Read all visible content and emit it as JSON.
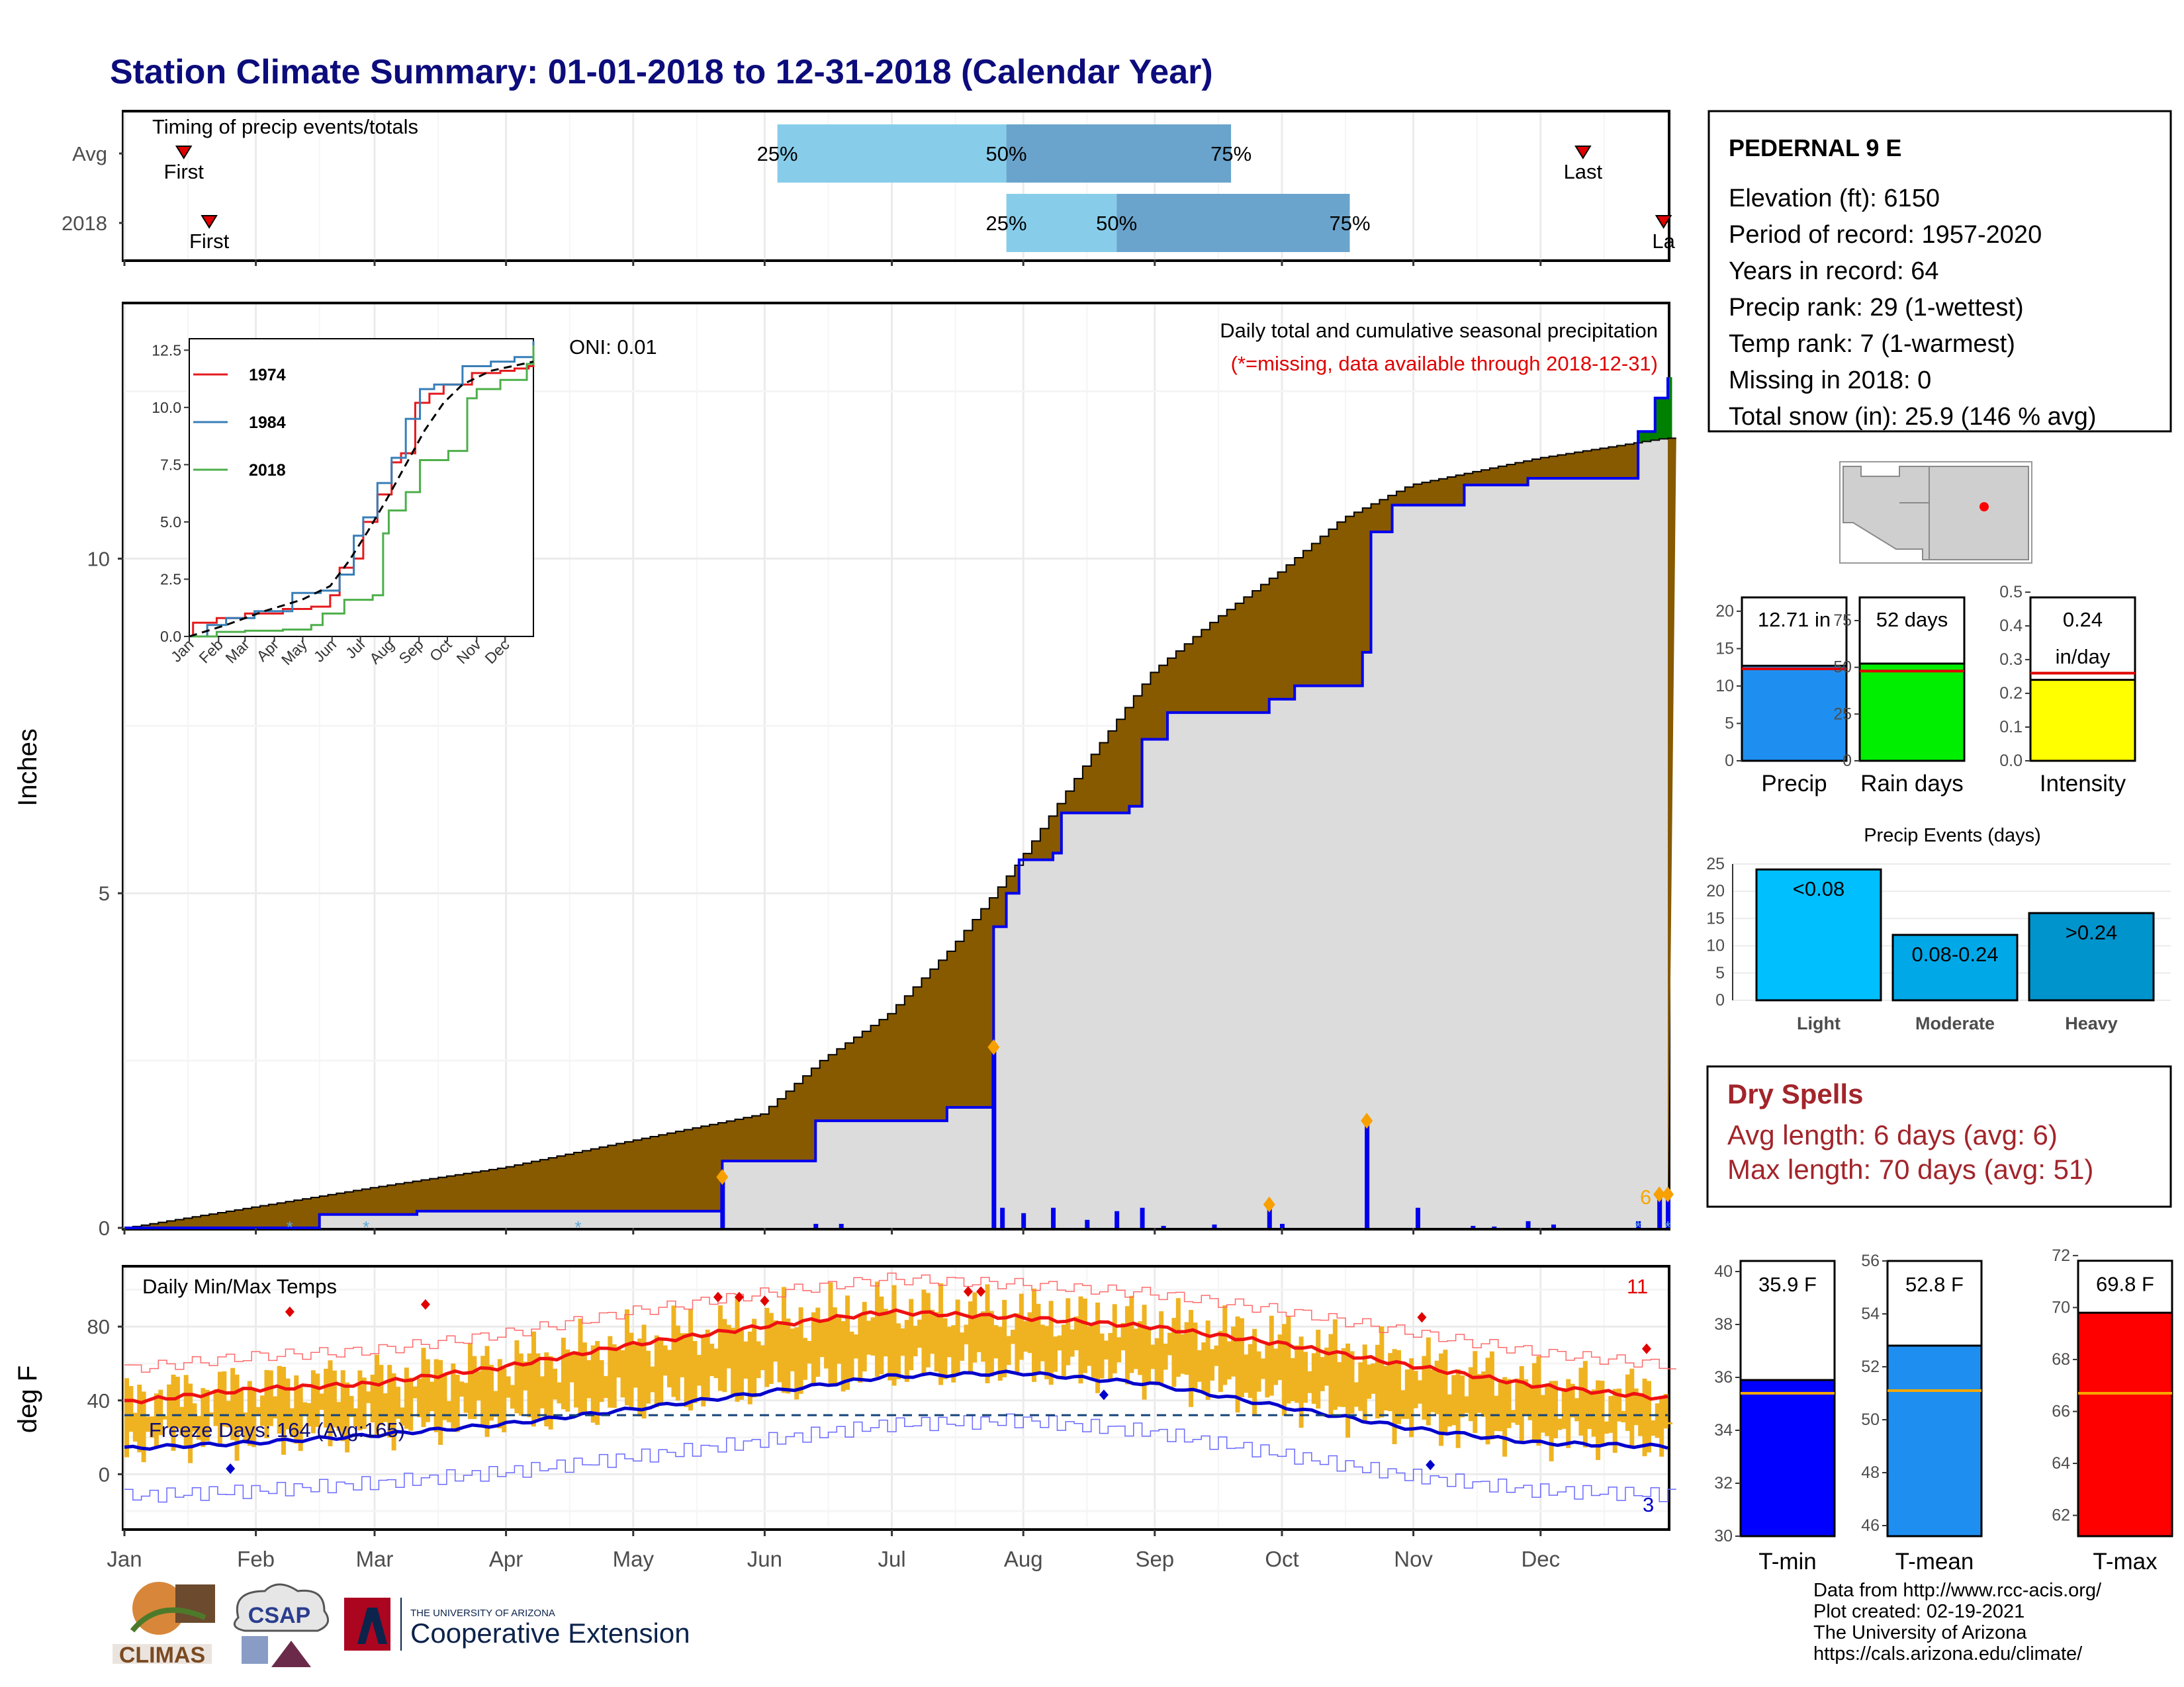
{
  "title": "Station Climate Summary: 01-01-2018 to 12-31-2018 (Calendar Year)",
  "months": [
    "Jan",
    "Feb",
    "Mar",
    "Apr",
    "May",
    "Jun",
    "Jul",
    "Aug",
    "Sep",
    "Oct",
    "Nov",
    "Dec"
  ],
  "colors": {
    "title": "#0c0c7c",
    "precip_fill": "#875a00",
    "precip_ahead": "#008000",
    "daily_bar": "#0000ee",
    "light_blue": "#87cdea",
    "mid_blue": "#6aa4cc",
    "temp_bar": "#efb321",
    "tmax": "#ee1111",
    "tmin": "#0000cc",
    "dry_red": "#a2252b"
  },
  "timing": {
    "title": "Timing of precip events/totals",
    "rows": [
      {
        "label": "Avg",
        "first_doy": 15,
        "last_doy": 345,
        "first_label": "First",
        "last_label": "Last",
        "q25_doy": 155,
        "q50_doy": 209,
        "q75_doy": 262,
        "q25_label": "25%",
        "q50_label": "50%",
        "q75_label": "75%"
      },
      {
        "label": "2018",
        "first_doy": 21,
        "last_doy": 364,
        "first_label": "First",
        "last_label": "La",
        "q25_doy": 209,
        "q50_doy": 235,
        "q75_doy": 290,
        "q25_label": "25%",
        "q50_label": "50%",
        "q75_label": "75%"
      }
    ]
  },
  "precip_panel": {
    "ylabel": "Inches",
    "yticks": [
      0,
      5,
      10
    ],
    "heading": "Daily total and cumulative seasonal precipitation",
    "missing_note": "(*=missing, data available through 2018-12-31)",
    "oni": "ONI: 0.01",
    "count_label": "6"
  },
  "inset": {
    "yticks": [
      "0.0",
      "2.5",
      "5.0",
      "7.5",
      "10.0",
      "12.5"
    ],
    "xticks": [
      "Jan",
      "Feb",
      "Mar",
      "Apr",
      "May",
      "Jun",
      "Jul",
      "Aug",
      "Sep",
      "Oct",
      "Nov",
      "Dec"
    ],
    "legend": [
      {
        "name": "1974",
        "color": "#e41a1c"
      },
      {
        "name": "1984",
        "color": "#377eb8"
      },
      {
        "name": "2018",
        "color": "#4daf4a"
      }
    ]
  },
  "temp_panel": {
    "ylabel": "deg F",
    "yticks": [
      0,
      40,
      80
    ],
    "heading": "Daily Min/Max Temps",
    "freeze_label": "Freeze Days: 164 (Avg:165)",
    "freeze_line": 32,
    "count_max": "11",
    "count_min": "3"
  },
  "station": {
    "name": "PEDERNAL 9 E",
    "lines": [
      "Elevation (ft): 6150",
      "Period of record: 1957-2020",
      "Years in record: 64",
      "Precip rank: 29 (1-wettest)",
      "Temp rank: 7 (1-warmest)",
      "Missing in 2018: 0",
      "Total snow (in): 25.9 (146 % avg)"
    ]
  },
  "summary_bars": [
    {
      "label": "Precip",
      "value": 12.71,
      "text1": "12.71 in",
      "text2": "",
      "avg": 12.3,
      "ymax": 23,
      "ticks": [
        "0",
        "5",
        "10",
        "15",
        "20"
      ],
      "tickvals": [
        0,
        5,
        10,
        15,
        20
      ],
      "color": "#1e8ff0"
    },
    {
      "label": "Rain days",
      "value": 52,
      "text1": "52 days",
      "text2": "",
      "avg": 48,
      "ymax": 92,
      "ticks": [
        "0",
        "25",
        "50",
        "75"
      ],
      "tickvals": [
        0,
        25,
        50,
        75
      ],
      "color": "#00ee00"
    },
    {
      "label": "Intensity",
      "value": 0.24,
      "text1": "0.24",
      "text2": "in/day",
      "avg": 0.26,
      "ymax": 0.51,
      "ticks": [
        "0.0",
        "0.1",
        "0.2",
        "0.3",
        "0.4",
        "0.5"
      ],
      "tickvals": [
        0,
        0.1,
        0.2,
        0.3,
        0.4,
        0.5
      ],
      "color": "#ffff00"
    }
  ],
  "events": {
    "title": "Precip Events (days)",
    "ticks": [
      0,
      5,
      10,
      15,
      20,
      25
    ],
    "bars": [
      {
        "label": "Light",
        "value": 24,
        "text": "<0.08",
        "color": "#00bfff"
      },
      {
        "label": "Moderate",
        "value": 12,
        "text": "0.08-0.24",
        "color": "#00a8e8"
      },
      {
        "label": "Heavy",
        "value": 16,
        "text": ">0.24",
        "color": "#0094cc"
      }
    ]
  },
  "dry_spells": {
    "title": "Dry Spells",
    "avg_line": "Avg length: 6 days (avg: 6)",
    "max_line": "Max length: 70 days (avg: 51)"
  },
  "temp_bars": [
    {
      "label": "T-min",
      "value": 35.9,
      "text": "35.9 F",
      "avg": 35.4,
      "ymin": 30,
      "ymax": 40.8,
      "ticks": [
        30,
        32,
        34,
        36,
        38,
        40
      ],
      "color": "#0000ff"
    },
    {
      "label": "T-mean",
      "value": 52.8,
      "text": "52.8 F",
      "avg": 51.1,
      "ymin": 45.6,
      "ymax": 56.4,
      "ticks": [
        46,
        48,
        50,
        52,
        54,
        56
      ],
      "color": "#1e8ff0"
    },
    {
      "label": "T-max",
      "value": 69.8,
      "text": "69.8 F",
      "avg": 66.7,
      "ymin": 61.2,
      "ymax": 72.2,
      "ticks": [
        62,
        64,
        66,
        68,
        70,
        72
      ],
      "color": "#ff0000"
    }
  ],
  "chart_data": [
    {
      "type": "area",
      "title": "Daily total and cumulative seasonal precipitation",
      "ylabel": "Inches",
      "ylim": [
        0,
        13.8
      ],
      "series": [
        {
          "name": "Avg",
          "points": [
            [
              1,
              0
            ],
            [
              31,
              0.31
            ],
            [
              59,
              0.6
            ],
            [
              90,
              0.9
            ],
            [
              120,
              1.3
            ],
            [
              151,
              1.7
            ],
            [
              165,
              2.5
            ],
            [
              181,
              3.2
            ],
            [
              196,
              4.2
            ],
            [
              212,
              5.5
            ],
            [
              227,
              6.9
            ],
            [
              243,
              8.3
            ],
            [
              258,
              9.1
            ],
            [
              273,
              9.8
            ],
            [
              288,
              10.6
            ],
            [
              304,
              11.1
            ],
            [
              319,
              11.3
            ],
            [
              334,
              11.5
            ],
            [
              349,
              11.65
            ],
            [
              364,
              11.8
            ]
          ]
        },
        {
          "name": "2018",
          "points": [
            [
              1,
              0
            ],
            [
              47,
              0.2
            ],
            [
              70,
              0.25
            ],
            [
              141,
              0.25
            ],
            [
              142,
              1.0
            ],
            [
              163,
              1.0
            ],
            [
              164,
              1.6
            ],
            [
              194,
              1.6
            ],
            [
              195,
              1.8
            ],
            [
              205,
              1.8
            ],
            [
              206,
              4.5
            ],
            [
              209,
              5.0
            ],
            [
              212,
              5.5
            ],
            [
              220,
              5.6
            ],
            [
              222,
              6.2
            ],
            [
              238,
              6.3
            ],
            [
              241,
              7.3
            ],
            [
              247,
              7.7
            ],
            [
              269,
              7.7
            ],
            [
              271,
              7.9
            ],
            [
              277,
              8.1
            ],
            [
              293,
              8.6
            ],
            [
              295,
              10.4
            ],
            [
              300,
              10.8
            ],
            [
              304,
              10.8
            ],
            [
              317,
              11.1
            ],
            [
              332,
              11.2
            ],
            [
              358,
              11.9
            ],
            [
              362,
              12.4
            ],
            [
              365,
              12.71
            ]
          ]
        }
      ],
      "daily_events": [
        [
          142,
          0.76
        ],
        [
          164,
          0.06
        ],
        [
          170,
          0.06
        ],
        [
          206,
          2.7
        ],
        [
          208,
          0.3
        ],
        [
          213,
          0.22
        ],
        [
          220,
          0.3
        ],
        [
          228,
          0.12
        ],
        [
          235,
          0.25
        ],
        [
          241,
          0.3
        ],
        [
          246,
          0.03
        ],
        [
          258,
          0.05
        ],
        [
          271,
          0.35
        ],
        [
          274,
          0.06
        ],
        [
          294,
          1.6
        ],
        [
          306,
          0.3
        ],
        [
          319,
          0.03
        ],
        [
          324,
          0.02
        ],
        [
          332,
          0.1
        ],
        [
          338,
          0.05
        ],
        [
          358,
          0.1
        ],
        [
          363,
          0.5
        ],
        [
          365,
          0.5
        ]
      ]
    },
    {
      "type": "line",
      "title": "",
      "xticks": [
        "Jan",
        "Feb",
        "Mar",
        "Apr",
        "May",
        "Jun",
        "Jul",
        "Aug",
        "Sep",
        "Oct",
        "Nov",
        "Dec"
      ],
      "ylim": [
        0,
        13
      ],
      "series": [
        {
          "name": "1974",
          "points": [
            [
              1,
              0
            ],
            [
              5,
              0.6
            ],
            [
              30,
              0.8
            ],
            [
              60,
              1.0
            ],
            [
              100,
              1.2
            ],
            [
              130,
              1.3
            ],
            [
              150,
              1.8
            ],
            [
              160,
              3.0
            ],
            [
              175,
              3.4
            ],
            [
              185,
              5.0
            ],
            [
              200,
              6.2
            ],
            [
              215,
              7.6
            ],
            [
              225,
              8.0
            ],
            [
              240,
              10.2
            ],
            [
              255,
              10.6
            ],
            [
              270,
              11.0
            ],
            [
              300,
              11.5
            ],
            [
              330,
              11.6
            ],
            [
              345,
              11.7
            ],
            [
              360,
              11.8
            ],
            [
              365,
              12.5
            ]
          ]
        },
        {
          "name": "1984",
          "points": [
            [
              1,
              0
            ],
            [
              20,
              0.5
            ],
            [
              40,
              0.8
            ],
            [
              70,
              1.1
            ],
            [
              110,
              1.9
            ],
            [
              140,
              2.0
            ],
            [
              160,
              2.7
            ],
            [
              175,
              4.4
            ],
            [
              185,
              5.2
            ],
            [
              200,
              6.7
            ],
            [
              215,
              7.8
            ],
            [
              230,
              9.5
            ],
            [
              245,
              10.8
            ],
            [
              260,
              11.0
            ],
            [
              290,
              11.8
            ],
            [
              320,
              12.0
            ],
            [
              345,
              12.2
            ],
            [
              365,
              12.9
            ]
          ]
        },
        {
          "name": "2018",
          "points": [
            [
              1,
              0
            ],
            [
              30,
              0.2
            ],
            [
              60,
              0.25
            ],
            [
              100,
              0.3
            ],
            [
              130,
              0.5
            ],
            [
              142,
              1.0
            ],
            [
              165,
              1.6
            ],
            [
              195,
              1.8
            ],
            [
              206,
              4.5
            ],
            [
              212,
              5.5
            ],
            [
              230,
              6.3
            ],
            [
              245,
              7.7
            ],
            [
              275,
              8.1
            ],
            [
              295,
              10.4
            ],
            [
              305,
              10.8
            ],
            [
              330,
              11.2
            ],
            [
              358,
              11.9
            ],
            [
              365,
              12.71
            ]
          ]
        },
        {
          "name": "Avg",
          "points": [
            [
              1,
              0
            ],
            [
              40,
              0.5
            ],
            [
              80,
              1.1
            ],
            [
              120,
              1.6
            ],
            [
              150,
              2.2
            ],
            [
              170,
              3.3
            ],
            [
              190,
              4.6
            ],
            [
              210,
              6.0
            ],
            [
              230,
              7.5
            ],
            [
              250,
              9.0
            ],
            [
              270,
              10.2
            ],
            [
              290,
              11.0
            ],
            [
              320,
              11.6
            ],
            [
              365,
              12.0
            ]
          ]
        }
      ]
    },
    {
      "type": "bar",
      "title": "Daily Min/Max Temps",
      "ylabel": "deg F",
      "ylim": [
        -30,
        112
      ],
      "series": [
        {
          "name": "Avg Tmax",
          "points": [
            [
              1,
              39
            ],
            [
              31,
              46
            ],
            [
              59,
              49
            ],
            [
              90,
              58
            ],
            [
              120,
              70
            ],
            [
              151,
              80
            ],
            [
              181,
              88
            ],
            [
              212,
              85
            ],
            [
              243,
              80
            ],
            [
              273,
              71
            ],
            [
              304,
              59
            ],
            [
              334,
              48
            ],
            [
              365,
              41
            ]
          ]
        },
        {
          "name": "Avg Tmin",
          "points": [
            [
              1,
              14
            ],
            [
              31,
              17
            ],
            [
              59,
              21
            ],
            [
              90,
              27
            ],
            [
              120,
              35
            ],
            [
              151,
              44
            ],
            [
              181,
              53
            ],
            [
              212,
              55
            ],
            [
              243,
              49
            ],
            [
              273,
              37
            ],
            [
              304,
              25
            ],
            [
              334,
              17
            ],
            [
              365,
              15
            ]
          ]
        }
      ],
      "freeze_line": 32
    }
  ]
}
